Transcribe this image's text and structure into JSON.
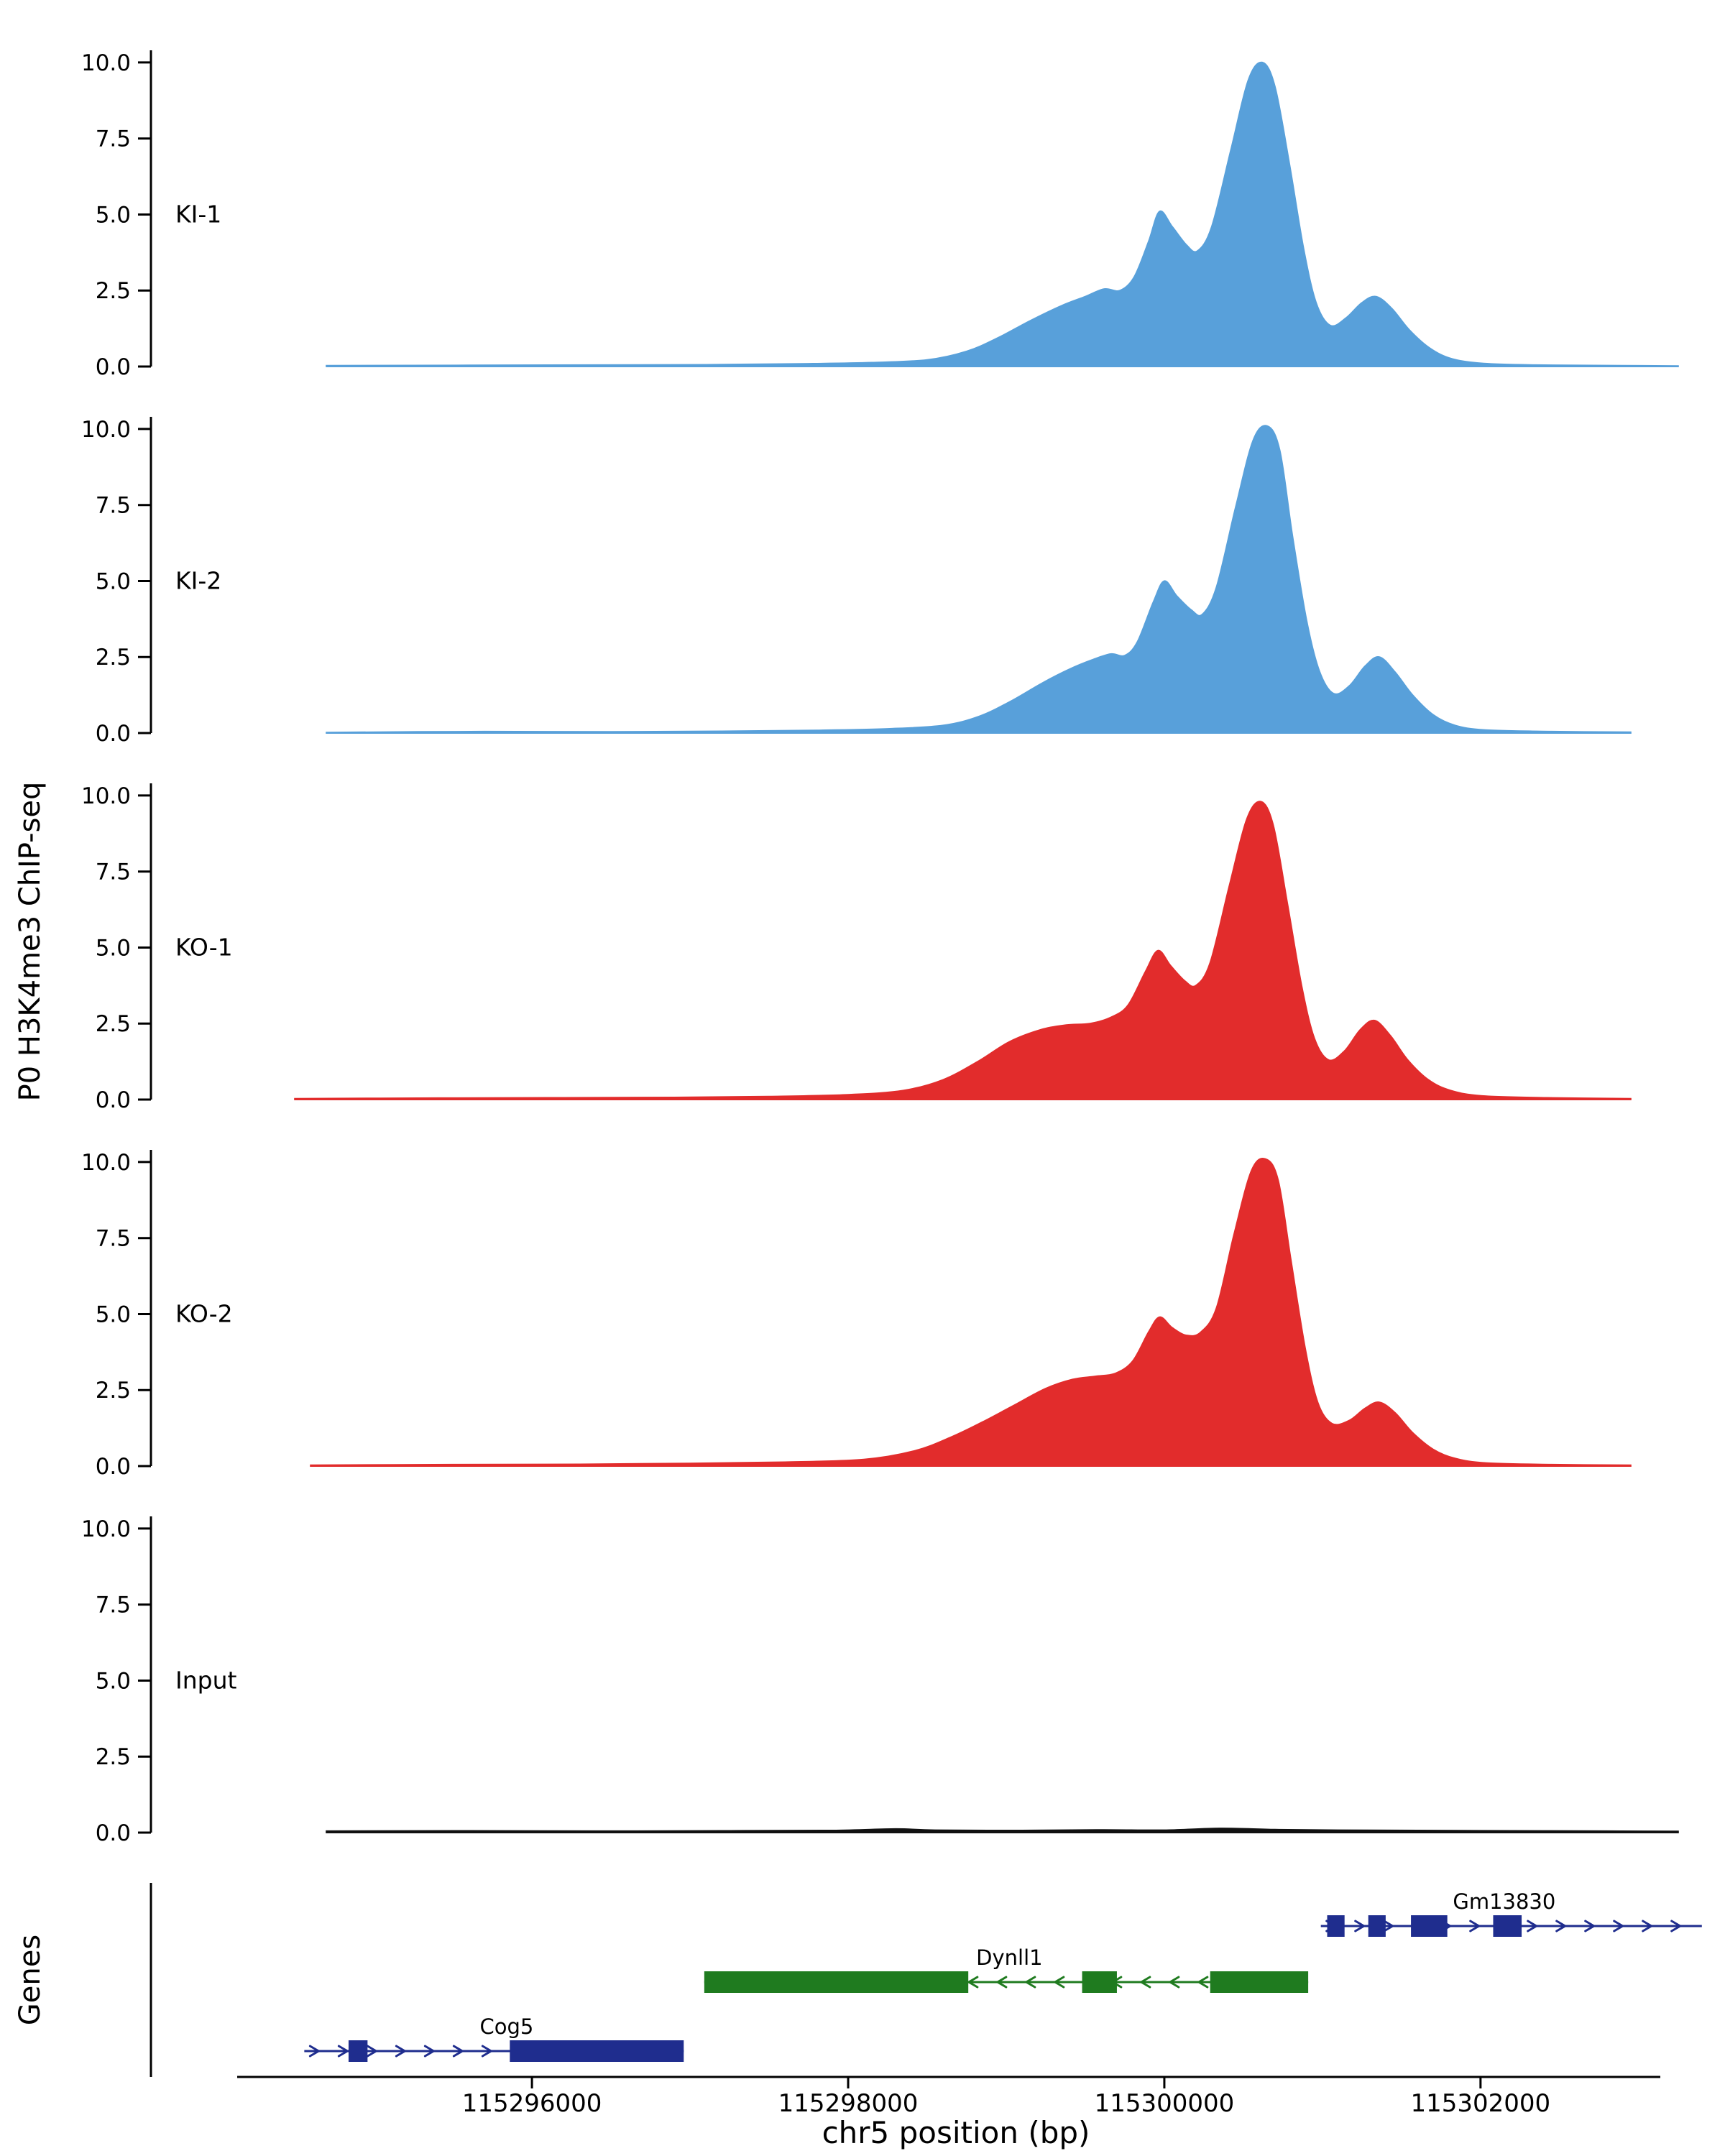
{
  "figure": {
    "genes_label": "Genes"
  },
  "chart_data": {
    "type": "area",
    "title": "",
    "xlabel": "chr5 position (bp)",
    "ylabel": "P0 H3K4me3 ChIP-seq",
    "x_range": [
      115293590,
      115303410
    ],
    "x_ticks": [
      115296000,
      115298000,
      115300000,
      115302000
    ],
    "x_tick_labels": [
      "115296000",
      "115298000",
      "115300000",
      "115302000"
    ],
    "y_ticks": [
      0.0,
      2.5,
      5.0,
      7.5,
      10.0
    ],
    "y_tick_labels": [
      "0.0",
      "2.5",
      "5.0",
      "7.5",
      "10.0"
    ],
    "ylim": [
      0,
      10.4
    ],
    "grid": false,
    "legend": "none",
    "tracks": [
      {
        "name": "KI-1",
        "color": "#58A0DA",
        "points": [
          [
            115294700,
            0.03
          ],
          [
            115295600,
            0.04
          ],
          [
            115296400,
            0.05
          ],
          [
            115297100,
            0.06
          ],
          [
            115297700,
            0.09
          ],
          [
            115298150,
            0.13
          ],
          [
            115298500,
            0.22
          ],
          [
            115298750,
            0.5
          ],
          [
            115298950,
            0.95
          ],
          [
            115299150,
            1.5
          ],
          [
            115299350,
            2.0
          ],
          [
            115299500,
            2.3
          ],
          [
            115299620,
            2.55
          ],
          [
            115299720,
            2.5
          ],
          [
            115299810,
            2.95
          ],
          [
            115299900,
            4.1
          ],
          [
            115299970,
            5.1
          ],
          [
            115300050,
            4.6
          ],
          [
            115300140,
            4.0
          ],
          [
            115300210,
            3.8
          ],
          [
            115300300,
            4.6
          ],
          [
            115300420,
            7.1
          ],
          [
            115300530,
            9.4
          ],
          [
            115300620,
            10.0
          ],
          [
            115300700,
            9.2
          ],
          [
            115300790,
            6.7
          ],
          [
            115300880,
            3.9
          ],
          [
            115300960,
            2.1
          ],
          [
            115301050,
            1.35
          ],
          [
            115301150,
            1.6
          ],
          [
            115301250,
            2.1
          ],
          [
            115301340,
            2.3
          ],
          [
            115301440,
            1.9
          ],
          [
            115301550,
            1.2
          ],
          [
            115301680,
            0.6
          ],
          [
            115301820,
            0.25
          ],
          [
            115302020,
            0.1
          ],
          [
            115302350,
            0.05
          ],
          [
            115302900,
            0.03
          ],
          [
            115303250,
            0.02
          ]
        ]
      },
      {
        "name": "KI-2",
        "color": "#58A0DA",
        "points": [
          [
            115294700,
            0.02
          ],
          [
            115295700,
            0.05
          ],
          [
            115296500,
            0.04
          ],
          [
            115297200,
            0.06
          ],
          [
            115297800,
            0.09
          ],
          [
            115298250,
            0.14
          ],
          [
            115298600,
            0.25
          ],
          [
            115298830,
            0.55
          ],
          [
            115299030,
            1.05
          ],
          [
            115299230,
            1.65
          ],
          [
            115299400,
            2.1
          ],
          [
            115299540,
            2.4
          ],
          [
            115299660,
            2.6
          ],
          [
            115299750,
            2.55
          ],
          [
            115299830,
            3.0
          ],
          [
            115299930,
            4.3
          ],
          [
            115300000,
            5.0
          ],
          [
            115300080,
            4.5
          ],
          [
            115300170,
            4.05
          ],
          [
            115300240,
            3.9
          ],
          [
            115300330,
            4.8
          ],
          [
            115300450,
            7.4
          ],
          [
            115300560,
            9.6
          ],
          [
            115300650,
            10.1
          ],
          [
            115300730,
            9.3
          ],
          [
            115300810,
            6.5
          ],
          [
            115300900,
            3.7
          ],
          [
            115300980,
            2.05
          ],
          [
            115301070,
            1.3
          ],
          [
            115301170,
            1.55
          ],
          [
            115301270,
            2.2
          ],
          [
            115301360,
            2.5
          ],
          [
            115301460,
            2.0
          ],
          [
            115301570,
            1.25
          ],
          [
            115301700,
            0.6
          ],
          [
            115301840,
            0.25
          ],
          [
            115302030,
            0.1
          ],
          [
            115302450,
            0.05
          ],
          [
            115302950,
            0.03
          ]
        ]
      },
      {
        "name": "KO-1",
        "color": "#E22C2C",
        "points": [
          [
            115294500,
            0.03
          ],
          [
            115295400,
            0.05
          ],
          [
            115296200,
            0.06
          ],
          [
            115296900,
            0.07
          ],
          [
            115297500,
            0.1
          ],
          [
            115298000,
            0.16
          ],
          [
            115298350,
            0.3
          ],
          [
            115298600,
            0.65
          ],
          [
            115298820,
            1.25
          ],
          [
            115299020,
            1.9
          ],
          [
            115299220,
            2.3
          ],
          [
            115299380,
            2.45
          ],
          [
            115299530,
            2.5
          ],
          [
            115299660,
            2.7
          ],
          [
            115299770,
            3.1
          ],
          [
            115299880,
            4.2
          ],
          [
            115299960,
            4.9
          ],
          [
            115300040,
            4.4
          ],
          [
            115300130,
            3.9
          ],
          [
            115300200,
            3.75
          ],
          [
            115300290,
            4.5
          ],
          [
            115300410,
            7.0
          ],
          [
            115300520,
            9.2
          ],
          [
            115300610,
            9.8
          ],
          [
            115300690,
            9.0
          ],
          [
            115300780,
            6.4
          ],
          [
            115300870,
            3.7
          ],
          [
            115300950,
            2.0
          ],
          [
            115301040,
            1.3
          ],
          [
            115301140,
            1.6
          ],
          [
            115301240,
            2.3
          ],
          [
            115301330,
            2.6
          ],
          [
            115301430,
            2.1
          ],
          [
            115301540,
            1.3
          ],
          [
            115301670,
            0.65
          ],
          [
            115301810,
            0.3
          ],
          [
            115302010,
            0.12
          ],
          [
            115302420,
            0.06
          ],
          [
            115302950,
            0.03
          ]
        ]
      },
      {
        "name": "KO-2",
        "color": "#E22C2C",
        "points": [
          [
            115294600,
            0.03
          ],
          [
            115295500,
            0.05
          ],
          [
            115296300,
            0.06
          ],
          [
            115297000,
            0.09
          ],
          [
            115297600,
            0.13
          ],
          [
            115298100,
            0.22
          ],
          [
            115298420,
            0.5
          ],
          [
            115298650,
            0.95
          ],
          [
            115298850,
            1.45
          ],
          [
            115299050,
            2.0
          ],
          [
            115299250,
            2.55
          ],
          [
            115299420,
            2.85
          ],
          [
            115299560,
            2.95
          ],
          [
            115299690,
            3.05
          ],
          [
            115299800,
            3.45
          ],
          [
            115299900,
            4.4
          ],
          [
            115299970,
            4.9
          ],
          [
            115300050,
            4.55
          ],
          [
            115300140,
            4.3
          ],
          [
            115300230,
            4.4
          ],
          [
            115300330,
            5.2
          ],
          [
            115300440,
            7.6
          ],
          [
            115300550,
            9.7
          ],
          [
            115300640,
            10.1
          ],
          [
            115300720,
            9.4
          ],
          [
            115300800,
            6.8
          ],
          [
            115300890,
            3.9
          ],
          [
            115300970,
            2.1
          ],
          [
            115301060,
            1.4
          ],
          [
            115301170,
            1.5
          ],
          [
            115301270,
            1.9
          ],
          [
            115301360,
            2.1
          ],
          [
            115301460,
            1.75
          ],
          [
            115301570,
            1.1
          ],
          [
            115301700,
            0.55
          ],
          [
            115301840,
            0.25
          ],
          [
            115302040,
            0.1
          ],
          [
            115302450,
            0.05
          ],
          [
            115302950,
            0.03
          ]
        ]
      },
      {
        "name": "Input",
        "color": "#111111",
        "points": [
          [
            115294700,
            0.05
          ],
          [
            115295600,
            0.06
          ],
          [
            115296400,
            0.05
          ],
          [
            115297200,
            0.06
          ],
          [
            115297900,
            0.07
          ],
          [
            115298300,
            0.12
          ],
          [
            115298550,
            0.08
          ],
          [
            115299100,
            0.07
          ],
          [
            115299600,
            0.09
          ],
          [
            115300000,
            0.08
          ],
          [
            115300350,
            0.14
          ],
          [
            115300700,
            0.1
          ],
          [
            115301100,
            0.08
          ],
          [
            115301600,
            0.07
          ],
          [
            115302200,
            0.06
          ],
          [
            115302800,
            0.05
          ],
          [
            115303250,
            0.04
          ]
        ]
      }
    ],
    "genes": [
      {
        "name": "Gm13830",
        "color": "#1F2D8E",
        "strand": "+",
        "row": 0,
        "span": [
          115300990,
          115303400
        ],
        "exons": [
          [
            115301030,
            115301140
          ],
          [
            115301290,
            115301400
          ],
          [
            115301560,
            115301790
          ],
          [
            115302080,
            115302260
          ]
        ],
        "label_bp": 115302150
      },
      {
        "name": "Dynll1",
        "color": "#1F7B1F",
        "strand": "-",
        "row": 1,
        "span": [
          115297090,
          115300910
        ],
        "exons": [
          [
            115297090,
            115298760
          ],
          [
            115299480,
            115299700
          ],
          [
            115300290,
            115300910
          ]
        ],
        "label_bp": 115299020
      },
      {
        "name": "Cog5",
        "color": "#1F2D8E",
        "strand": "+",
        "row": 2,
        "span": [
          115294560,
          115296960
        ],
        "exons": [
          [
            115294840,
            115294960
          ],
          [
            115295860,
            115296960
          ]
        ],
        "label_bp": 115295840
      }
    ]
  }
}
